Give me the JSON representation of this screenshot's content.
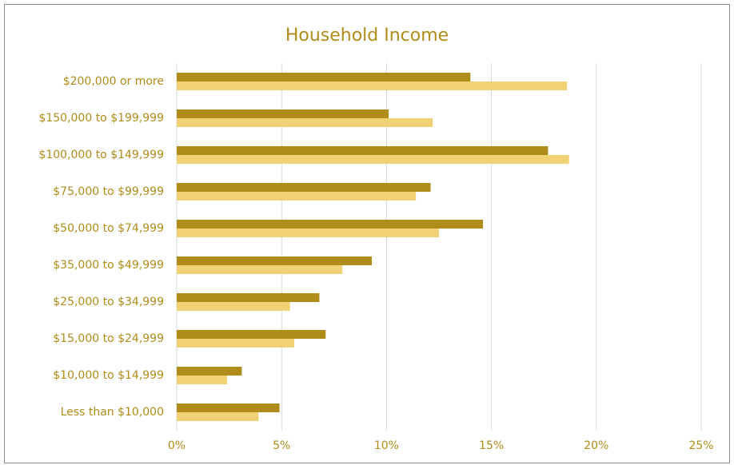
{
  "chart_data": {
    "type": "hbar",
    "title": "Household Income",
    "categories": [
      "$200,000 or more",
      "$150,000 to $199,999",
      "$100,000 to $149,999",
      "$75,000 to $99,999",
      "$50,000 to $74,999",
      "$35,000 to $49,999",
      "$25,000 to $34,999",
      "$15,000 to $24,999",
      "$10,000 to $14,999",
      "Less than $10,000"
    ],
    "series": [
      {
        "color": "#b08d1a",
        "values": [
          14.0,
          10.1,
          17.7,
          12.1,
          14.6,
          9.3,
          6.8,
          7.1,
          3.1,
          4.9
        ]
      },
      {
        "color": "#f0d275",
        "values": [
          18.6,
          12.2,
          18.7,
          11.4,
          12.5,
          7.9,
          5.4,
          5.6,
          2.4,
          3.9
        ]
      }
    ],
    "xlim": [
      0,
      25
    ],
    "xticks": [
      {
        "value": 0,
        "label": "0%"
      },
      {
        "value": 5,
        "label": "5%"
      },
      {
        "value": 10,
        "label": "10%"
      },
      {
        "value": 15,
        "label": "15%"
      },
      {
        "value": 20,
        "label": "20%"
      },
      {
        "value": 25,
        "label": "25%"
      }
    ],
    "grid": true
  }
}
